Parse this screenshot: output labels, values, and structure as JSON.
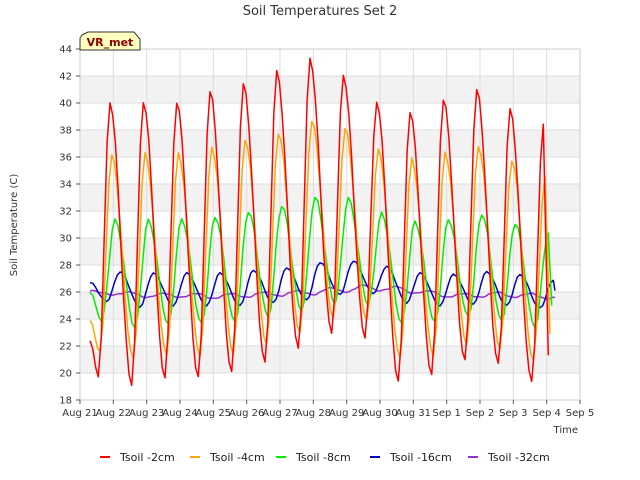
{
  "chart_data": {
    "type": "line",
    "title": "Soil Temperatures Set 2",
    "xlabel": "Time",
    "ylabel": "Soil Temperature (C)",
    "badge": "VR_met",
    "x_ticks": [
      "Aug 21",
      "Aug 22",
      "Aug 23",
      "Aug 24",
      "Aug 25",
      "Aug 26",
      "Aug 27",
      "Aug 28",
      "Aug 29",
      "Aug 30",
      "Aug 31",
      "Sep 1",
      "Sep 2",
      "Sep 3",
      "Sep 4",
      "Sep 5"
    ],
    "xlim_days": [
      0,
      15
    ],
    "ylim": [
      18,
      44
    ],
    "y_ticks": [
      18,
      20,
      22,
      24,
      26,
      28,
      30,
      32,
      34,
      36,
      38,
      40,
      42,
      44
    ],
    "grid": true,
    "banded_background": true,
    "legend_position": "bottom",
    "sample_interval_days": 0.0833333,
    "series": [
      {
        "name": "Tsoil -2cm",
        "color": "#ff0000",
        "peaks": [
          {
            "day": 0.9,
            "value": 40.0
          },
          {
            "day": 1.9,
            "value": 40.1
          },
          {
            "day": 2.9,
            "value": 40.1
          },
          {
            "day": 3.9,
            "value": 40.9
          },
          {
            "day": 4.9,
            "value": 41.4
          },
          {
            "day": 5.9,
            "value": 42.3
          },
          {
            "day": 6.9,
            "value": 43.2
          },
          {
            "day": 7.9,
            "value": 42.0
          },
          {
            "day": 8.9,
            "value": 40.1
          },
          {
            "day": 9.9,
            "value": 39.4
          },
          {
            "day": 10.9,
            "value": 40.3
          },
          {
            "day": 11.9,
            "value": 41.0
          },
          {
            "day": 12.9,
            "value": 39.5
          },
          {
            "day": 13.9,
            "value": 38.3
          }
        ],
        "troughs": [
          {
            "day": 0.55,
            "value": 19.8
          },
          {
            "day": 1.55,
            "value": 19.2
          },
          {
            "day": 2.55,
            "value": 19.7
          },
          {
            "day": 3.55,
            "value": 19.7
          },
          {
            "day": 4.55,
            "value": 20.0
          },
          {
            "day": 5.55,
            "value": 20.7
          },
          {
            "day": 6.55,
            "value": 21.8
          },
          {
            "day": 7.55,
            "value": 23.0
          },
          {
            "day": 8.55,
            "value": 22.7
          },
          {
            "day": 9.55,
            "value": 19.5
          },
          {
            "day": 10.55,
            "value": 19.9
          },
          {
            "day": 11.55,
            "value": 20.9
          },
          {
            "day": 12.55,
            "value": 20.6
          },
          {
            "day": 13.55,
            "value": 19.3
          }
        ],
        "start": {
          "day": 0.3,
          "value": 22.4
        },
        "end": {
          "day": 14.05,
          "value": 21.3
        }
      },
      {
        "name": "Tsoil -4cm",
        "color": "#ffa500",
        "peaks": [
          {
            "day": 0.95,
            "value": 36.1
          },
          {
            "day": 1.95,
            "value": 36.2
          },
          {
            "day": 2.95,
            "value": 36.2
          },
          {
            "day": 3.95,
            "value": 36.7
          },
          {
            "day": 4.95,
            "value": 37.3
          },
          {
            "day": 5.95,
            "value": 37.8
          },
          {
            "day": 6.95,
            "value": 38.7
          },
          {
            "day": 7.95,
            "value": 38.1
          },
          {
            "day": 8.95,
            "value": 36.5
          },
          {
            "day": 9.95,
            "value": 35.8
          },
          {
            "day": 10.95,
            "value": 36.3
          },
          {
            "day": 11.95,
            "value": 36.8
          },
          {
            "day": 12.95,
            "value": 35.8
          },
          {
            "day": 13.95,
            "value": 34.7
          }
        ],
        "troughs": [
          {
            "day": 0.6,
            "value": 21.5
          },
          {
            "day": 1.6,
            "value": 21.0
          },
          {
            "day": 2.6,
            "value": 21.3
          },
          {
            "day": 3.6,
            "value": 21.3
          },
          {
            "day": 4.6,
            "value": 21.5
          },
          {
            "day": 5.6,
            "value": 22.2
          },
          {
            "day": 6.6,
            "value": 23.0
          },
          {
            "day": 7.6,
            "value": 24.0
          },
          {
            "day": 8.6,
            "value": 23.8
          },
          {
            "day": 9.6,
            "value": 21.1
          },
          {
            "day": 10.6,
            "value": 21.3
          },
          {
            "day": 11.6,
            "value": 22.2
          },
          {
            "day": 12.6,
            "value": 21.9
          },
          {
            "day": 13.6,
            "value": 21.0
          }
        ],
        "start": {
          "day": 0.3,
          "value": 23.9
        },
        "end": {
          "day": 14.1,
          "value": 22.9
        }
      },
      {
        "name": "Tsoil -8cm",
        "color": "#00ee00",
        "peaks": [
          {
            "day": 1.05,
            "value": 31.3
          },
          {
            "day": 2.05,
            "value": 31.3
          },
          {
            "day": 3.05,
            "value": 31.4
          },
          {
            "day": 4.05,
            "value": 31.6
          },
          {
            "day": 5.05,
            "value": 32.0
          },
          {
            "day": 6.05,
            "value": 32.4
          },
          {
            "day": 7.05,
            "value": 33.0
          },
          {
            "day": 8.05,
            "value": 32.9
          },
          {
            "day": 9.05,
            "value": 31.8
          },
          {
            "day": 10.05,
            "value": 31.2
          },
          {
            "day": 11.05,
            "value": 31.4
          },
          {
            "day": 12.05,
            "value": 31.8
          },
          {
            "day": 13.05,
            "value": 31.1
          },
          {
            "day": 14.05,
            "value": 30.4
          }
        ],
        "troughs": [
          {
            "day": 0.65,
            "value": 23.9
          },
          {
            "day": 1.65,
            "value": 23.4
          },
          {
            "day": 2.65,
            "value": 23.6
          },
          {
            "day": 3.65,
            "value": 23.6
          },
          {
            "day": 4.65,
            "value": 23.7
          },
          {
            "day": 5.65,
            "value": 24.1
          },
          {
            "day": 6.65,
            "value": 24.6
          },
          {
            "day": 7.65,
            "value": 25.2
          },
          {
            "day": 8.65,
            "value": 25.1
          },
          {
            "day": 9.65,
            "value": 23.7
          },
          {
            "day": 10.65,
            "value": 23.7
          },
          {
            "day": 11.65,
            "value": 24.1
          },
          {
            "day": 12.65,
            "value": 23.8
          },
          {
            "day": 13.65,
            "value": 23.4
          }
        ],
        "start": {
          "day": 0.3,
          "value": 26.0
        },
        "end": {
          "day": 14.15,
          "value": 25.0
        }
      },
      {
        "name": "Tsoil -16cm",
        "color": "#0000cc",
        "peaks": [
          {
            "day": 1.2,
            "value": 27.5
          },
          {
            "day": 2.2,
            "value": 27.4
          },
          {
            "day": 3.2,
            "value": 27.4
          },
          {
            "day": 4.2,
            "value": 27.4
          },
          {
            "day": 5.2,
            "value": 27.6
          },
          {
            "day": 6.2,
            "value": 27.8
          },
          {
            "day": 7.2,
            "value": 28.2
          },
          {
            "day": 8.2,
            "value": 28.3
          },
          {
            "day": 9.2,
            "value": 27.9
          },
          {
            "day": 10.2,
            "value": 27.4
          },
          {
            "day": 11.2,
            "value": 27.3
          },
          {
            "day": 12.2,
            "value": 27.5
          },
          {
            "day": 13.2,
            "value": 27.3
          },
          {
            "day": 14.2,
            "value": 26.9
          }
        ],
        "troughs": [
          {
            "day": 0.8,
            "value": 25.3
          },
          {
            "day": 1.8,
            "value": 24.9
          },
          {
            "day": 2.8,
            "value": 25.0
          },
          {
            "day": 3.8,
            "value": 25.0
          },
          {
            "day": 4.8,
            "value": 25.0
          },
          {
            "day": 5.8,
            "value": 25.2
          },
          {
            "day": 6.8,
            "value": 25.4
          },
          {
            "day": 7.8,
            "value": 25.8
          },
          {
            "day": 8.8,
            "value": 25.9
          },
          {
            "day": 9.8,
            "value": 25.2
          },
          {
            "day": 10.8,
            "value": 25.0
          },
          {
            "day": 11.8,
            "value": 25.1
          },
          {
            "day": 12.8,
            "value": 25.0
          },
          {
            "day": 13.8,
            "value": 24.8
          }
        ],
        "start": {
          "day": 0.3,
          "value": 26.7
        },
        "end": {
          "day": 14.25,
          "value": 26.1
        }
      },
      {
        "name": "Tsoil -32cm",
        "color": "#9932cc",
        "peaks": [
          {
            "day": 1.5,
            "value": 26.0
          },
          {
            "day": 2.5,
            "value": 25.9
          },
          {
            "day": 3.5,
            "value": 25.9
          },
          {
            "day": 4.5,
            "value": 25.9
          },
          {
            "day": 5.5,
            "value": 26.0
          },
          {
            "day": 6.5,
            "value": 26.1
          },
          {
            "day": 7.5,
            "value": 26.3
          },
          {
            "day": 8.5,
            "value": 26.5
          },
          {
            "day": 9.5,
            "value": 26.4
          },
          {
            "day": 10.5,
            "value": 26.1
          },
          {
            "day": 11.5,
            "value": 25.9
          },
          {
            "day": 12.5,
            "value": 26.0
          },
          {
            "day": 13.5,
            "value": 25.9
          }
        ],
        "troughs": [
          {
            "day": 1.0,
            "value": 25.8
          },
          {
            "day": 2.0,
            "value": 25.6
          },
          {
            "day": 3.0,
            "value": 25.6
          },
          {
            "day": 4.0,
            "value": 25.5
          },
          {
            "day": 5.0,
            "value": 25.6
          },
          {
            "day": 6.0,
            "value": 25.7
          },
          {
            "day": 7.0,
            "value": 25.8
          },
          {
            "day": 8.0,
            "value": 26.0
          },
          {
            "day": 9.0,
            "value": 26.1
          },
          {
            "day": 10.0,
            "value": 25.9
          },
          {
            "day": 11.0,
            "value": 25.6
          },
          {
            "day": 12.0,
            "value": 25.6
          },
          {
            "day": 13.0,
            "value": 25.6
          },
          {
            "day": 14.0,
            "value": 25.5
          }
        ],
        "start": {
          "day": 0.3,
          "value": 26.1
        },
        "end": {
          "day": 14.25,
          "value": 25.6
        }
      }
    ]
  }
}
